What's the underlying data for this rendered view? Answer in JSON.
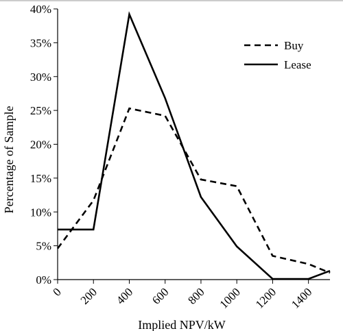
{
  "chart_data": {
    "type": "line",
    "xlabel": "Implied NPV/kW",
    "ylabel": "Percentage of Sample",
    "xlim": [
      0,
      1520
    ],
    "ylim": [
      0,
      40
    ],
    "x_ticks": [
      "0",
      "200",
      "400",
      "600",
      "800",
      "1000",
      "1200",
      "1400"
    ],
    "y_ticks": [
      "0%",
      "5%",
      "10%",
      "15%",
      "20%",
      "25%",
      "30%",
      "35%",
      "40%"
    ],
    "grid": false,
    "legend_position": "top-right",
    "series": [
      {
        "name": "Buy",
        "style": "dashed",
        "color": "#000000",
        "x": [
          0,
          200,
          400,
          600,
          800,
          1000,
          1200,
          1400,
          1520
        ],
        "y": [
          4.6,
          11.7,
          25.3,
          24.2,
          14.8,
          13.8,
          3.5,
          2.3,
          1.0
        ]
      },
      {
        "name": "Lease",
        "style": "solid",
        "color": "#000000",
        "x": [
          0,
          200,
          400,
          600,
          800,
          1000,
          1200,
          1400,
          1520
        ],
        "y": [
          7.4,
          7.4,
          39.2,
          26.8,
          12.2,
          4.9,
          0.1,
          0.1,
          1.3
        ]
      }
    ]
  }
}
